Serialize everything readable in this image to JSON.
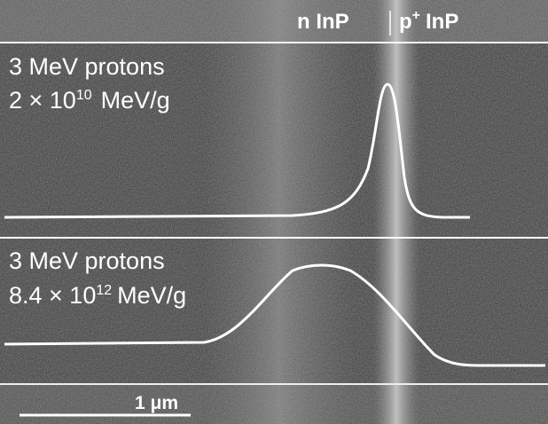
{
  "header": {
    "left_region": "n InP",
    "right_region": {
      "base": "p",
      "superscript": "+",
      "rest": "InP"
    }
  },
  "panels": [
    {
      "line1": "3 MeV protons",
      "line2": {
        "base": "2 × 10",
        "exponent": "10",
        "unit": "MeV/g"
      }
    },
    {
      "line1": "3 MeV protons",
      "line2": {
        "base": "8.4 × 10",
        "exponent": "12",
        "unit": "MeV/g"
      }
    }
  ],
  "scale_bar": {
    "label": "1 μm"
  }
}
